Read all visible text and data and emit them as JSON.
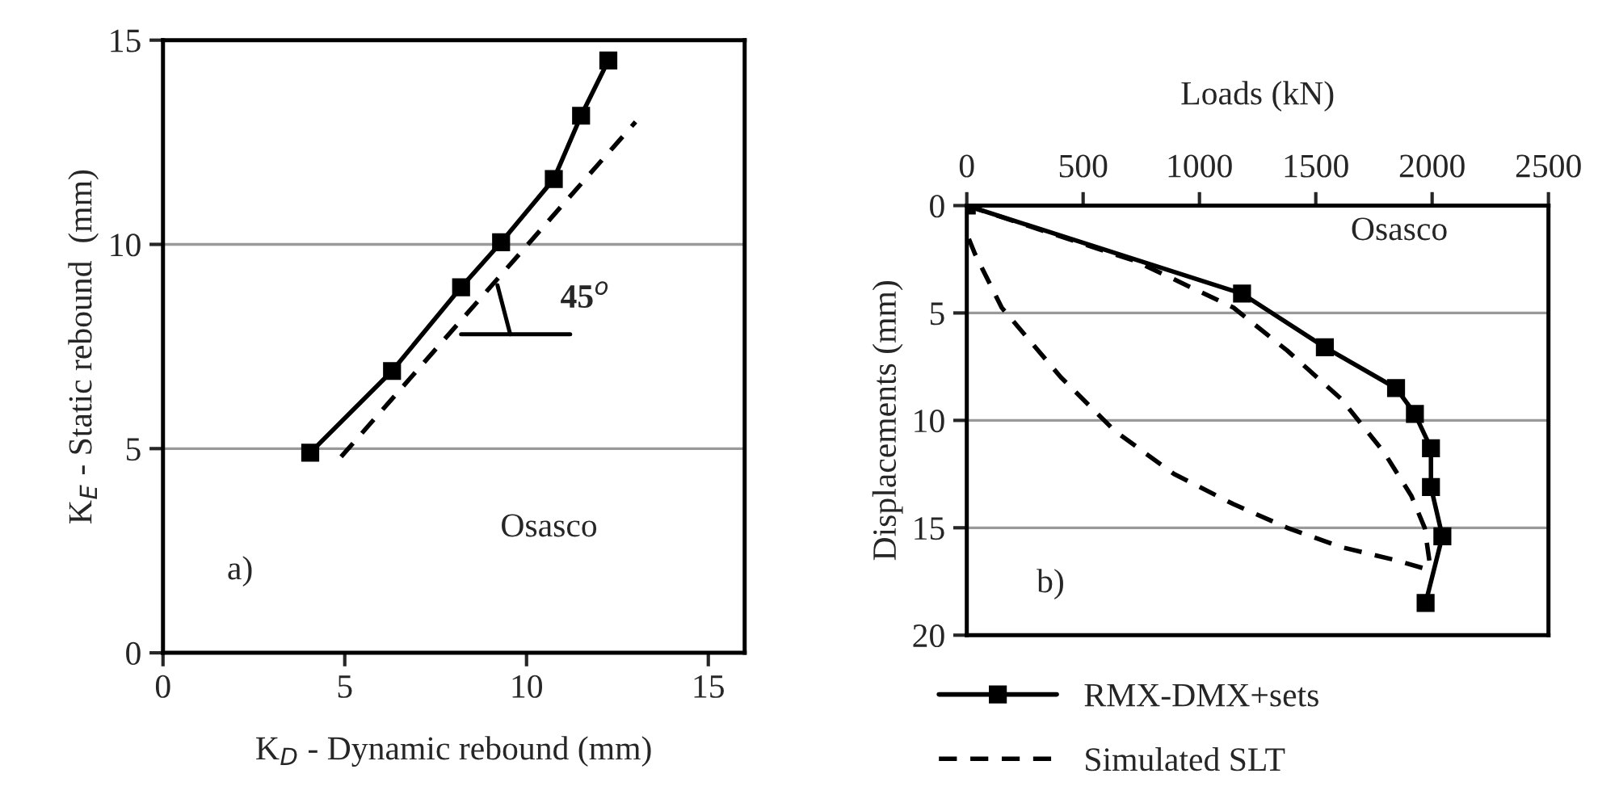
{
  "chart_data": [
    {
      "type": "line",
      "xlabel": "K$_{D}$ - Dynamic rebound (mm)",
      "ylabel": "K$_{E}$ - Static rebound  (mm)",
      "xlim": [
        0,
        16
      ],
      "xticks": [
        0,
        5,
        10,
        15
      ],
      "ylim": [
        0,
        15
      ],
      "yticks": [
        0,
        5,
        10,
        15
      ],
      "grid": "y",
      "legend": false,
      "series": [
        {
          "color": "#000000",
          "marker": "square",
          "line_style": "solid",
          "x": [
            4.05,
            6.3,
            8.2,
            9.3,
            10.75,
            11.5,
            12.25
          ],
          "values": [
            4.9,
            6.9,
            8.95,
            10.05,
            11.6,
            13.15,
            14.5
          ]
        },
        {
          "color": "#000000",
          "marker": "none",
          "line_style": "dashed",
          "x": [
            4.9,
            13.0
          ],
          "values": [
            4.8,
            13.0
          ]
        }
      ],
      "annotations": [
        {
          "text": "45$^{o}$",
          "x": 9.2,
          "y": 9.0
        },
        "Osasco",
        "a)"
      ]
    },
    {
      "type": "line",
      "xlabel": "Loads (kN)",
      "ylabel": "Displacements (mm)",
      "xlim": [
        0,
        2500
      ],
      "xticks": [
        0,
        500,
        1000,
        1500,
        2000,
        2500
      ],
      "ylim": [
        20,
        0
      ],
      "yticks": [
        0,
        5,
        10,
        15,
        20
      ],
      "grid": "y",
      "legend": "bottom",
      "series": [
        {
          "name": "RMX-DMX+sets",
          "color": "#000000",
          "marker": "square",
          "line_style": "solid",
          "x": [
            0,
            1183,
            1539,
            1845,
            1926,
            1995,
            1995,
            2044,
            1972
          ],
          "values": [
            0,
            4.1,
            6.6,
            8.5,
            9.7,
            11.3,
            13.1,
            15.4,
            18.5
          ]
        },
        {
          "name": "Simulated SLT",
          "color": "#000000",
          "marker": "none",
          "line_style": "dashed",
          "x": [
            0,
            729,
            1146,
            1377,
            1609,
            1794,
            1910,
            1968,
            1991,
            1968,
            1840,
            1609,
            1377,
            1146,
            891,
            637,
            405,
            150,
            35,
            7
          ],
          "values": [
            0,
            2.6,
            4.75,
            6.75,
            9.0,
            11.5,
            13.5,
            15.0,
            16.75,
            16.9,
            16.5,
            15.9,
            15.0,
            13.9,
            12.5,
            10.5,
            8.0,
            4.75,
            2.25,
            1.5
          ]
        }
      ],
      "annotations": [
        "Osasco",
        "b)"
      ]
    }
  ]
}
